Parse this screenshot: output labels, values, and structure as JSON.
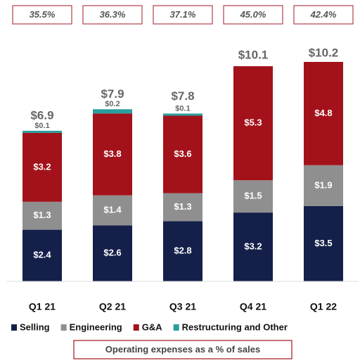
{
  "chart_data": {
    "type": "stacked_bar",
    "categories": [
      "Q1 21",
      "Q2 21",
      "Q3 21",
      "Q4 21",
      "Q1 22"
    ],
    "series": [
      {
        "name": "Selling",
        "color": "#14204a",
        "values": [
          2.4,
          2.6,
          2.8,
          3.2,
          3.5
        ],
        "value_labels": [
          "$2.4",
          "$2.6",
          "$2.8",
          "$3.2",
          "$3.5"
        ]
      },
      {
        "name": "Engineering",
        "color": "#8f8f8f",
        "values": [
          1.3,
          1.4,
          1.3,
          1.5,
          1.9
        ],
        "value_labels": [
          "$1.3",
          "$1.4",
          "$1.3",
          "$1.5",
          "$1.9"
        ]
      },
      {
        "name": "G&A",
        "color": "#a3121a",
        "values": [
          3.2,
          3.8,
          3.6,
          5.3,
          4.8
        ],
        "value_labels": [
          "$3.2",
          "$3.8",
          "$3.6",
          "$5.3",
          "$4.8"
        ]
      },
      {
        "name": "Restructuring and Other",
        "color": "#2a9d9d",
        "values": [
          0.1,
          0.2,
          0.1,
          null,
          null
        ],
        "value_labels": [
          "$0.1",
          "$0.2",
          "$0.1",
          null,
          null
        ]
      }
    ],
    "totals": [
      6.9,
      7.9,
      7.8,
      10.1,
      10.2
    ],
    "total_labels": [
      "$6.9",
      "$7.9",
      "$7.8",
      "$10.1",
      "$10.2"
    ],
    "ratios": [
      35.5,
      36.3,
      37.1,
      45.0,
      42.4
    ],
    "ratio_labels": [
      "35.5%",
      "36.3%",
      "37.1%",
      "45.0%",
      "42.4%"
    ],
    "footnote": "Operating expenses as a % of sales"
  }
}
